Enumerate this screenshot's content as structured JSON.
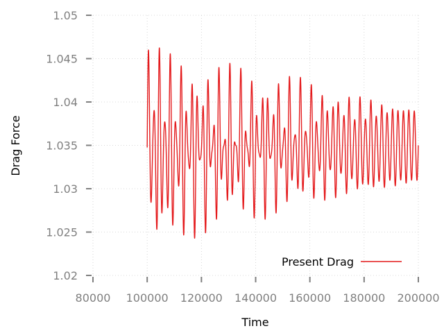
{
  "chart_data": {
    "type": "line",
    "xlabel": "Time",
    "ylabel": "Drag Force",
    "xlim": [
      80000,
      200000
    ],
    "ylim": [
      1.02,
      1.05
    ],
    "xticks": [
      80000,
      100000,
      120000,
      140000,
      160000,
      180000,
      200000
    ],
    "xtick_labels": [
      "80000",
      "100000",
      "120000",
      "140000",
      "160000",
      "180000",
      "200000"
    ],
    "yticks": [
      1.02,
      1.025,
      1.03,
      1.035,
      1.04,
      1.045,
      1.05
    ],
    "ytick_labels": [
      "1.02",
      "1.025",
      "1.03",
      "1.035",
      "1.04",
      "1.045",
      "1.05"
    ],
    "grid": true,
    "legend_position": "bottom-right",
    "colors": {
      "series": "#e41a1c",
      "grid": "#cccccc",
      "axis": "#7f7f7f"
    },
    "series": [
      {
        "name": "Present Drag",
        "x_start": 100000,
        "x_end": 200000,
        "mean": 1.035,
        "period": 2000,
        "beat_period": 4350,
        "envelope": {
          "x": [
            100000,
            110000,
            120000,
            130000,
            140000,
            150000,
            160000,
            170000,
            180000,
            190000,
            200000
          ],
          "max": [
            1.047,
            1.0455,
            1.045,
            1.0445,
            1.044,
            1.0435,
            1.0425,
            1.0415,
            1.0405,
            1.0395,
            1.039
          ],
          "min": [
            1.0225,
            1.0235,
            1.0245,
            1.0255,
            1.0262,
            1.027,
            1.028,
            1.029,
            1.0295,
            1.0302,
            1.031
          ]
        },
        "inner_envelope": {
          "x": [
            100000,
            110000,
            120000,
            130000,
            140000,
            150000,
            160000,
            170000,
            180000,
            190000,
            200000
          ],
          "max": [
            1.039,
            1.037,
            1.0355,
            1.035,
            1.0352,
            1.0358,
            1.0365,
            1.0372,
            1.038,
            1.0386,
            1.039
          ],
          "min": [
            1.03,
            1.032,
            1.0335,
            1.0342,
            1.034,
            1.0335,
            1.0328,
            1.032,
            1.0313,
            1.031,
            1.031
          ]
        }
      }
    ]
  }
}
